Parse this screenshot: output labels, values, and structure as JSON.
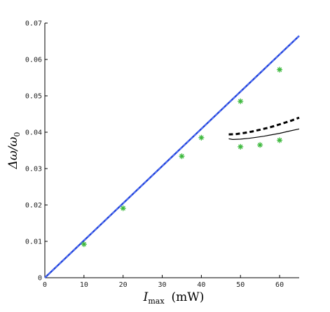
{
  "chart_data": {
    "type": "line",
    "title": "",
    "xlabel_main": "I",
    "xlabel_sub": "max",
    "xlabel_unit": "(mW)",
    "ylabel_main": "Δω/ω",
    "ylabel_sub": "0",
    "xlim": [
      0,
      65
    ],
    "ylim": [
      0,
      0.07
    ],
    "grid": false,
    "legend": "none",
    "xticks": [
      0,
      10,
      20,
      30,
      40,
      50,
      60
    ],
    "xtick_labels": [
      "0",
      "10",
      "20",
      "30",
      "40",
      "50",
      "60"
    ],
    "yticks": [
      0,
      0.01,
      0.02,
      0.03,
      0.04,
      0.05,
      0.06,
      0.07
    ],
    "ytick_labels": [
      "0",
      "0.01",
      "0.02",
      "0.03",
      "0.04",
      "0.05",
      "0.06",
      "0.07"
    ],
    "series": [
      {
        "style": "blue-solid-dashed-overlay",
        "color": "#1f3fd6",
        "x": [
          0,
          65
        ],
        "y": [
          0,
          0.0665
        ]
      },
      {
        "style": "black-dashed",
        "color": "#000000",
        "x": [
          47,
          49,
          51,
          53,
          55,
          57,
          59,
          61,
          63,
          65
        ],
        "y": [
          0.0394,
          0.0395,
          0.0398,
          0.0402,
          0.0407,
          0.0412,
          0.0418,
          0.0425,
          0.0432,
          0.044
        ]
      },
      {
        "style": "black-solid",
        "color": "#000000",
        "x": [
          47,
          48,
          50,
          52,
          54,
          56,
          58,
          60,
          62,
          65
        ],
        "y": [
          0.0382,
          0.038,
          0.0381,
          0.0383,
          0.0386,
          0.0389,
          0.0393,
          0.0397,
          0.0402,
          0.0409
        ]
      },
      {
        "style": "green-star-markers",
        "color": "#3cb83c",
        "x": [
          10,
          20,
          35,
          40,
          50,
          50,
          55,
          60,
          60
        ],
        "y": [
          0.0092,
          0.0191,
          0.0334,
          0.0385,
          0.0485,
          0.036,
          0.0365,
          0.0378,
          0.0572
        ]
      }
    ]
  }
}
